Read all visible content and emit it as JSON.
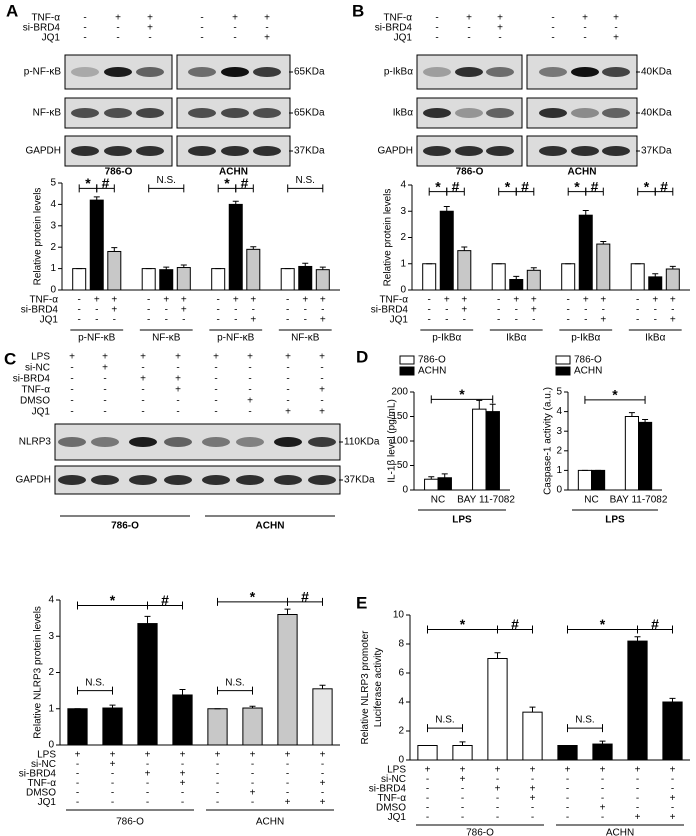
{
  "panel_labels": [
    "A",
    "B",
    "C",
    "D",
    "E"
  ],
  "blots": [
    {
      "conditions": [
        {
          "label": "TNF-α",
          "signs": [
            "-",
            "+",
            "+",
            "-",
            "+",
            "+"
          ]
        },
        {
          "label": "si-BRD4",
          "signs": [
            "-",
            "-",
            "+",
            "-",
            "-",
            "-"
          ]
        },
        {
          "label": "JQ1",
          "signs": [
            "-",
            "-",
            "-",
            "-",
            "-",
            "+"
          ]
        }
      ],
      "bands": [
        {
          "label": "p-NF-κB",
          "size": "65KDa"
        },
        {
          "label": "NF-κB",
          "size": "65KDa"
        },
        {
          "label": "GAPDH",
          "size": "37KDa"
        }
      ],
      "cell_lines": [
        "786-O",
        "ACHN"
      ]
    },
    {
      "conditions": [
        {
          "label": "TNF-α",
          "signs": [
            "-",
            "+",
            "+",
            "-",
            "+",
            "+"
          ]
        },
        {
          "label": "si-BRD4",
          "signs": [
            "-",
            "-",
            "+",
            "-",
            "-",
            "-"
          ]
        },
        {
          "label": "JQ1",
          "signs": [
            "-",
            "-",
            "-",
            "-",
            "-",
            "+"
          ]
        }
      ],
      "bands": [
        {
          "label": "p-IkBα",
          "size": "40KDa"
        },
        {
          "label": "IkBα",
          "size": "40KDa"
        },
        {
          "label": "GAPDH",
          "size": "37KDa"
        }
      ],
      "cell_lines": [
        "786-O",
        "ACHN"
      ]
    },
    {
      "conditions": [
        {
          "label": "LPS",
          "signs": [
            "+",
            "+",
            "+",
            "+",
            "+",
            "+",
            "+",
            "+"
          ]
        },
        {
          "label": "si-NC",
          "signs": [
            "-",
            "+",
            "-",
            "-",
            "-",
            "-",
            "-",
            "-"
          ]
        },
        {
          "label": "si-BRD4",
          "signs": [
            "-",
            "-",
            "+",
            "+",
            "-",
            "-",
            "-",
            "-"
          ]
        },
        {
          "label": "TNF-α",
          "signs": [
            "-",
            "-",
            "-",
            "+",
            "-",
            "-",
            "-",
            "+"
          ]
        },
        {
          "label": "DMSO",
          "signs": [
            "-",
            "-",
            "-",
            "-",
            "-",
            "+",
            "-",
            "-"
          ]
        },
        {
          "label": "JQ1",
          "signs": [
            "-",
            "-",
            "-",
            "-",
            "-",
            "-",
            "+",
            "+"
          ]
        }
      ],
      "bands": [
        {
          "label": "NLRP3",
          "size": "110KDa"
        },
        {
          "label": "GAPDH",
          "size": "37KDa"
        }
      ],
      "cell_lines": [
        "786-O",
        "ACHN"
      ]
    }
  ],
  "chart_data": [
    {
      "type": "bar",
      "y_label": "Relative protein levels",
      "categories": [
        "p-NF-κB",
        "NF-κB",
        "p-NF-κB",
        "NF-κB"
      ],
      "series": [
        {
          "color": "#ffffff",
          "values": [
            1,
            1,
            1,
            1
          ],
          "errors": [
            0,
            0,
            0,
            0
          ]
        },
        {
          "color": "#000000",
          "values": [
            4.2,
            0.95,
            4.0,
            1.1
          ],
          "errors": [
            0.15,
            0.12,
            0.15,
            0.15
          ]
        },
        {
          "color": "#c8c8c8",
          "values": [
            1.8,
            1.05,
            1.9,
            0.95
          ],
          "errors": [
            0.18,
            0.12,
            0.12,
            0.12
          ]
        }
      ],
      "ylim": [
        0,
        5
      ],
      "yticks": [
        0,
        1,
        2,
        3,
        4,
        5
      ],
      "conditions": [
        {
          "label": "TNF-α",
          "signs": [
            "-",
            "+",
            "+",
            "-",
            "+",
            "+",
            "-",
            "+",
            "+",
            "-",
            "+",
            "+"
          ]
        },
        {
          "label": "si-BRD4",
          "signs": [
            "-",
            "-",
            "+",
            "-",
            "-",
            "+",
            "-",
            "-",
            "-",
            "-",
            "-",
            "-"
          ]
        },
        {
          "label": "JQ1",
          "signs": [
            "-",
            "-",
            "-",
            "-",
            "-",
            "-",
            "-",
            "-",
            "+",
            "-",
            "-",
            "+"
          ]
        }
      ],
      "annotations": [
        "*",
        "#",
        "N.S.",
        "*",
        "#",
        "N.S."
      ]
    },
    {
      "type": "bar",
      "y_label": "Relative  protein levels",
      "categories": [
        "p-IkBα",
        "IkBα",
        "p-IkBα",
        "IkBα"
      ],
      "series": [
        {
          "color": "#ffffff",
          "values": [
            1,
            1,
            1,
            1
          ],
          "errors": [
            0,
            0,
            0,
            0
          ]
        },
        {
          "color": "#000000",
          "values": [
            3.0,
            0.4,
            2.85,
            0.5
          ],
          "errors": [
            0.18,
            0.12,
            0.18,
            0.12
          ]
        },
        {
          "color": "#c8c8c8",
          "values": [
            1.5,
            0.75,
            1.75,
            0.8
          ],
          "errors": [
            0.14,
            0.1,
            0.1,
            0.1
          ]
        }
      ],
      "ylim": [
        0,
        4
      ],
      "yticks": [
        0,
        1,
        2,
        3,
        4
      ],
      "conditions": [
        {
          "label": "TNF-α",
          "signs": [
            "-",
            "+",
            "+",
            "-",
            "+",
            "+",
            "-",
            "+",
            "+",
            "-",
            "+",
            "+"
          ]
        },
        {
          "label": "si-BRD4",
          "signs": [
            "-",
            "-",
            "+",
            "-",
            "-",
            "+",
            "-",
            "-",
            "-",
            "-",
            "-",
            "-"
          ]
        },
        {
          "label": "JQ1",
          "signs": [
            "-",
            "-",
            "-",
            "-",
            "-",
            "-",
            "-",
            "-",
            "+",
            "-",
            "-",
            "+"
          ]
        }
      ],
      "annotations": [
        "*",
        "#",
        "*",
        "#",
        "*",
        "#",
        "*",
        "#"
      ]
    },
    {
      "type": "bar",
      "y_label": "Relative NLRP3 protein levels",
      "values": [
        1,
        1.02,
        3.35,
        1.38,
        1,
        1.02,
        3.6,
        1.55
      ],
      "errors": [
        0,
        0.08,
        0.2,
        0.15,
        0,
        0.05,
        0.15,
        0.1
      ],
      "colors": [
        "#000000",
        "#000000",
        "#000000",
        "#000000",
        "#c8c8c8",
        "#c8c8c8",
        "#c8c8c8",
        "#e6e6e6"
      ],
      "groups": [
        "786-O",
        "ACHN"
      ],
      "ylim": [
        0,
        4
      ],
      "yticks": [
        0,
        1,
        2,
        3,
        4
      ],
      "conditions": [
        {
          "label": "LPS",
          "signs": [
            "+",
            "+",
            "+",
            "+",
            "+",
            "+",
            "+",
            "+"
          ]
        },
        {
          "label": "si-NC",
          "signs": [
            "-",
            "+",
            "-",
            "-",
            "-",
            "-",
            "-",
            "-"
          ]
        },
        {
          "label": "si-BRD4",
          "signs": [
            "-",
            "-",
            "+",
            "+",
            "-",
            "-",
            "-",
            "-"
          ]
        },
        {
          "label": "TNF-α",
          "signs": [
            "-",
            "-",
            "-",
            "+",
            "-",
            "-",
            "-",
            "+"
          ]
        },
        {
          "label": "DMSO",
          "signs": [
            "-",
            "-",
            "-",
            "-",
            "-",
            "+",
            "-",
            "-"
          ]
        },
        {
          "label": "JQ1",
          "signs": [
            "-",
            "-",
            "-",
            "-",
            "-",
            "-",
            "+",
            "+"
          ]
        }
      ],
      "annotations": [
        "N.S.",
        "*",
        "#",
        "N.S.",
        "*",
        "#"
      ]
    },
    {
      "type": "bar",
      "y_label": "IL-1β level (pg/mL)",
      "x_label": "LPS",
      "categories": [
        "NC",
        "BAY 11-7082"
      ],
      "series": [
        {
          "name": "786-O",
          "color": "#ffffff",
          "values": [
            22,
            165
          ],
          "errors": [
            5,
            18
          ]
        },
        {
          "name": "ACHN",
          "color": "#000000",
          "values": [
            25,
            160
          ],
          "errors": [
            8,
            15
          ]
        }
      ],
      "ylim": [
        0,
        200
      ],
      "yticks": [
        0,
        50,
        100,
        150,
        200
      ],
      "annotations": [
        "*"
      ]
    },
    {
      "type": "bar",
      "y_label": "Caspase-1 activity (a.u.)",
      "x_label": "LPS",
      "categories": [
        "NC",
        "BAY 11-7082"
      ],
      "series": [
        {
          "name": "786-O",
          "color": "#ffffff",
          "values": [
            1,
            3.75
          ],
          "errors": [
            0,
            0.2
          ]
        },
        {
          "name": "ACHN",
          "color": "#000000",
          "values": [
            1,
            3.45
          ],
          "errors": [
            0,
            0.15
          ]
        }
      ],
      "ylim": [
        0,
        5
      ],
      "yticks": [
        0,
        1,
        2,
        3,
        4,
        5
      ],
      "annotations": [
        "*"
      ]
    },
    {
      "type": "bar",
      "y_label": [
        "Relative  NLRP3 promoter",
        "Luciferase activity"
      ],
      "values": [
        1,
        1,
        7,
        3.3,
        1,
        1.1,
        8.2,
        4
      ],
      "errors": [
        0,
        0.25,
        0.4,
        0.35,
        0,
        0.2,
        0.3,
        0.25
      ],
      "colors": [
        "#ffffff",
        "#ffffff",
        "#ffffff",
        "#ffffff",
        "#000000",
        "#000000",
        "#000000",
        "#000000"
      ],
      "groups": [
        "786-O",
        "ACHN"
      ],
      "ylim": [
        0,
        10
      ],
      "yticks": [
        0,
        2,
        4,
        6,
        8,
        10
      ],
      "conditions": [
        {
          "label": "LPS",
          "signs": [
            "+",
            "+",
            "+",
            "+",
            "+",
            "+",
            "+",
            "+"
          ]
        },
        {
          "label": "si-NC",
          "signs": [
            "-",
            "+",
            "-",
            "-",
            "-",
            "-",
            "-",
            "-"
          ]
        },
        {
          "label": "si-BRD4",
          "signs": [
            "-",
            "-",
            "+",
            "+",
            "-",
            "-",
            "-",
            "-"
          ]
        },
        {
          "label": "TNF-α",
          "signs": [
            "-",
            "-",
            "-",
            "+",
            "-",
            "-",
            "-",
            "+"
          ]
        },
        {
          "label": "DMSO",
          "signs": [
            "-",
            "-",
            "-",
            "-",
            "-",
            "+",
            "-",
            "-"
          ]
        },
        {
          "label": "JQ1",
          "signs": [
            "-",
            "-",
            "-",
            "-",
            "-",
            "-",
            "+",
            "+"
          ]
        }
      ],
      "annotations": [
        "N.S.",
        "*",
        "#",
        "N.S.",
        "*",
        "#"
      ]
    }
  ]
}
